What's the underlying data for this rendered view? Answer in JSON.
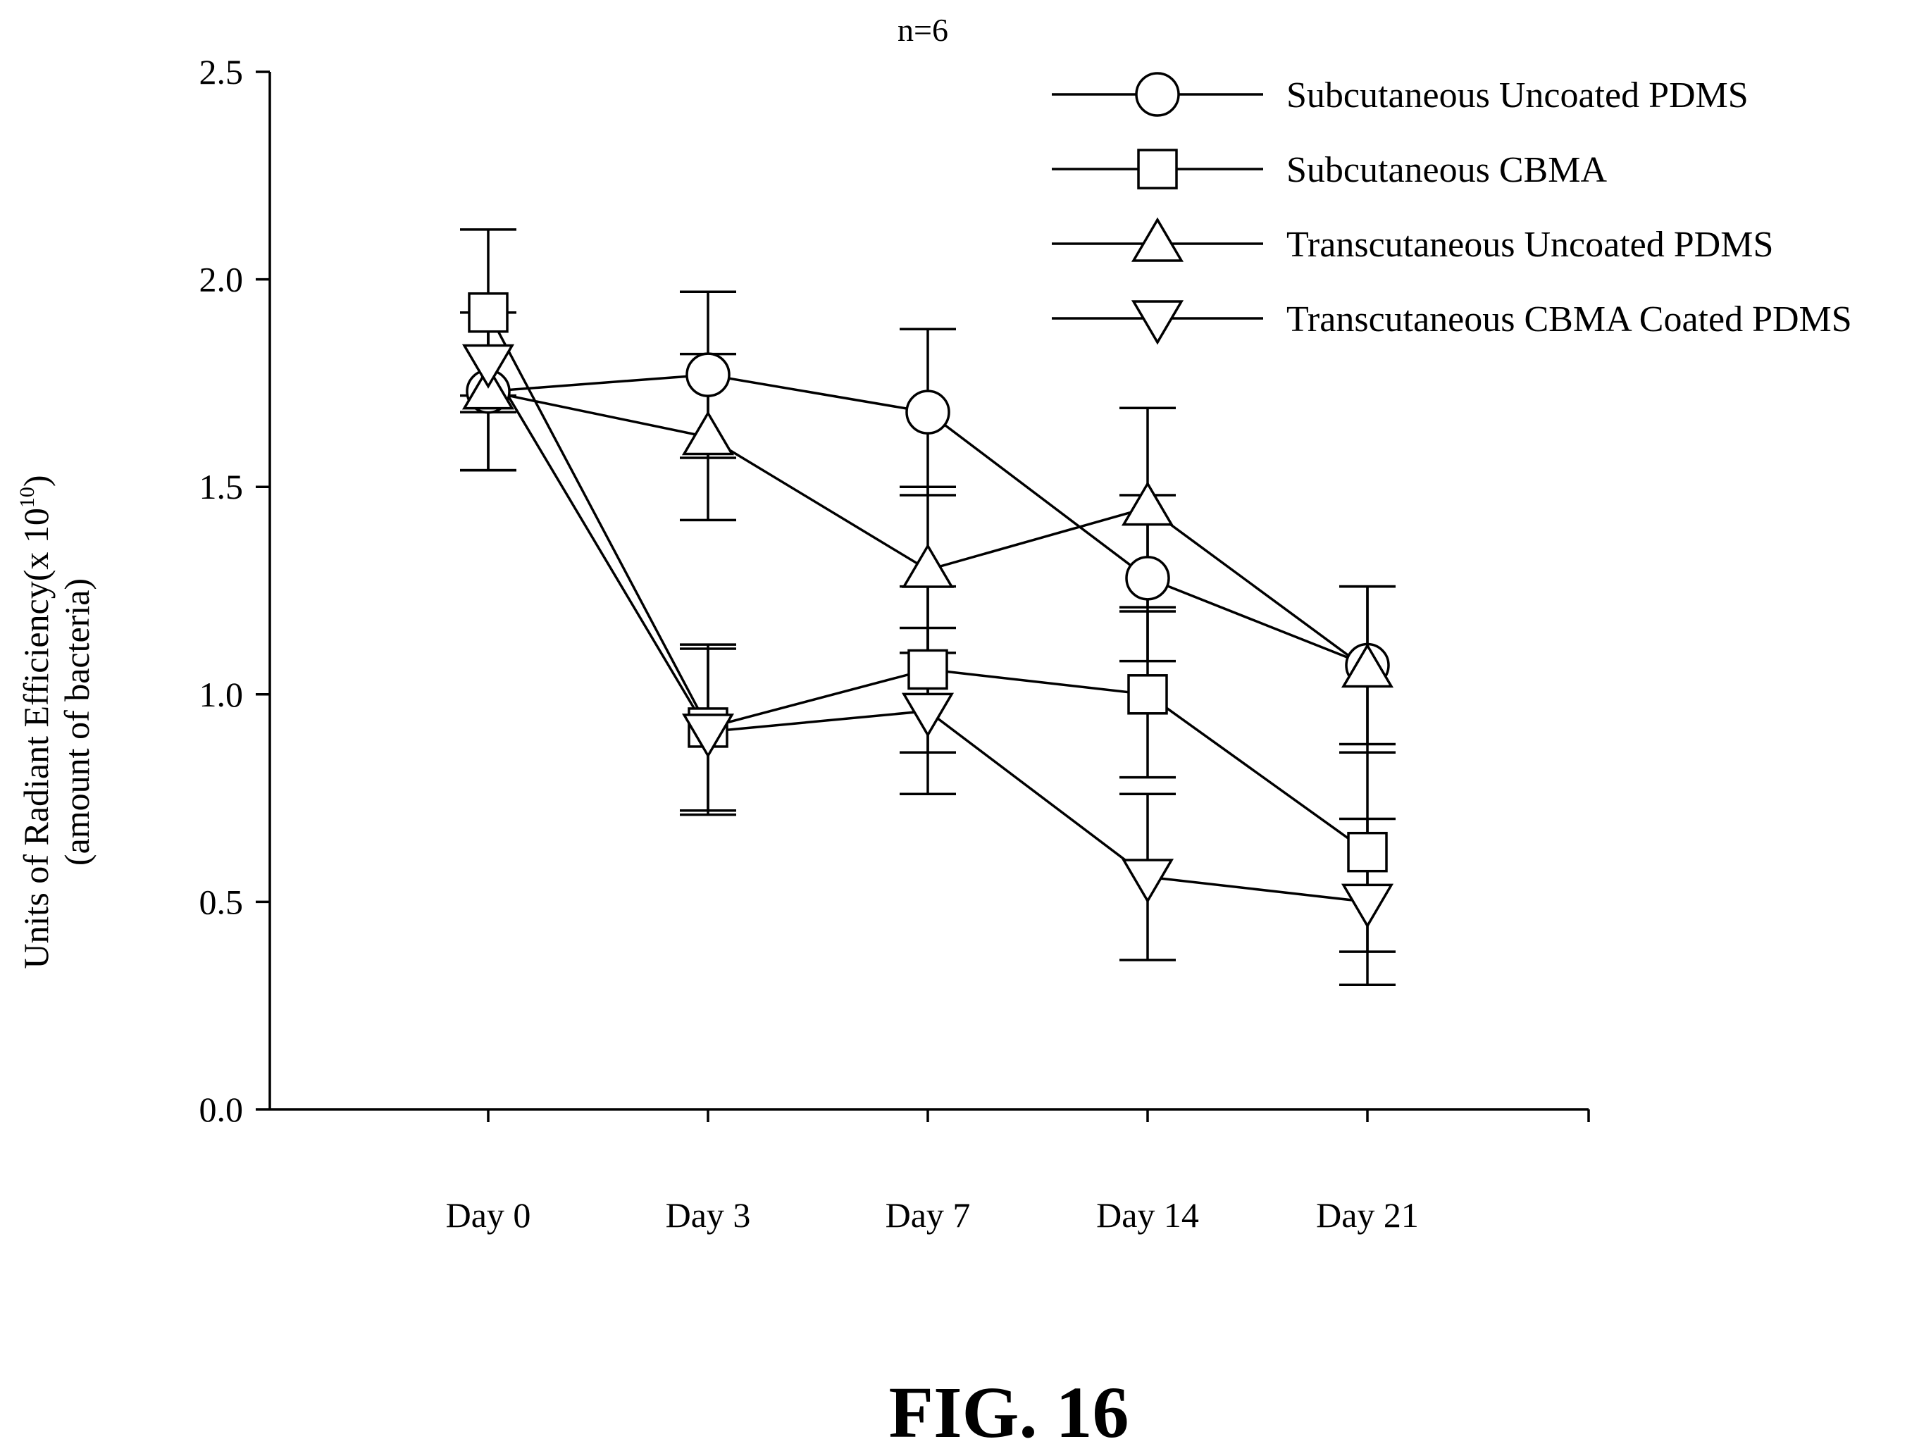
{
  "chart_data": {
    "type": "line",
    "title": "n=6",
    "xlabel": "",
    "ylabel_line1": "Units of Radiant Efficiency(x 10",
    "ylabel_exp": "10",
    "ylabel_close": ")",
    "ylabel_line2": "(amount of bacteria)",
    "categories": [
      "Day 0",
      "Day 3",
      "Day 7",
      "Day 14",
      "Day 21"
    ],
    "ylim": [
      0.0,
      2.5
    ],
    "yticks": [
      "0.0",
      "0.5",
      "1.0",
      "1.5",
      "2.0",
      "2.5"
    ],
    "legend_position": "top-right",
    "grid": false,
    "series": [
      {
        "name": "Subcutaneous Uncoated PDMS",
        "marker": "circle",
        "values": [
          1.73,
          1.77,
          1.68,
          1.28,
          1.07
        ],
        "error": [
          0.19,
          0.2,
          0.2,
          0.2,
          0.19
        ]
      },
      {
        "name": "Subcutaneous CBMA",
        "marker": "square",
        "values": [
          1.92,
          0.92,
          1.06,
          1.0,
          0.62
        ],
        "error": [
          0.2,
          0.2,
          0.2,
          0.2,
          0.24
        ]
      },
      {
        "name": "Transcutaneous Uncoated PDMS",
        "marker": "triangle-up",
        "values": [
          1.73,
          1.62,
          1.3,
          1.45,
          1.06
        ],
        "error": [
          0.19,
          0.2,
          0.2,
          0.24,
          0.2
        ]
      },
      {
        "name": "Transcutaneous CBMA Coated PDMS",
        "marker": "triangle-down",
        "values": [
          1.8,
          0.91,
          0.96,
          0.56,
          0.5
        ],
        "error": [
          0.12,
          0.2,
          0.2,
          0.2,
          0.2
        ]
      }
    ]
  },
  "caption": "FIG. 16"
}
